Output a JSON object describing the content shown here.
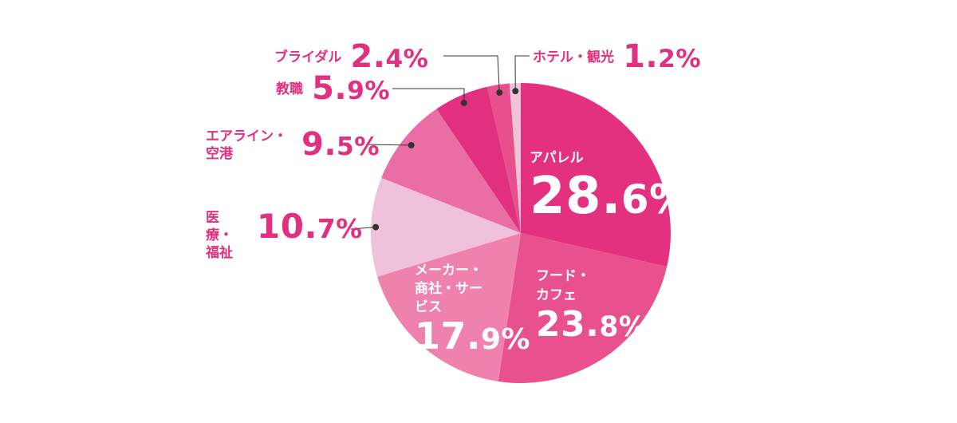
{
  "chart_data": {
    "type": "pie",
    "title": "",
    "colors": {
      "label_pink": "#e0307f",
      "inside_label": "#ffffff",
      "leader": "#333333"
    },
    "slices": [
      {
        "label": "アパレル",
        "value": 28.6,
        "display": [
          "28.",
          "6%"
        ],
        "color": "#e3317f"
      },
      {
        "label": "フード・カフェ",
        "value": 23.8,
        "display": [
          "23.",
          "8%"
        ],
        "color": "#e9508e"
      },
      {
        "label": "メーカー・商社・サービス",
        "value": 17.9,
        "display": [
          "17.",
          "9%"
        ],
        "color": "#ee82ac"
      },
      {
        "label": "医療・福祉",
        "value": 10.7,
        "display": [
          "10.",
          "7%"
        ],
        "color": "#f0c1da"
      },
      {
        "label": "エアライン・空港",
        "value": 9.5,
        "display": [
          "9.",
          "5%"
        ],
        "color": "#ea6ea3"
      },
      {
        "label": "教職",
        "value": 5.9,
        "display": [
          "5.",
          "9%"
        ],
        "color": "#e0307f"
      },
      {
        "label": "ブライダル",
        "value": 2.4,
        "display": [
          "2.",
          "4%"
        ],
        "color": "#e7508c"
      },
      {
        "label": "ホテル・観光",
        "value": 1.2,
        "display": [
          "1.",
          "2%"
        ],
        "color": "#f1c3db"
      }
    ]
  }
}
